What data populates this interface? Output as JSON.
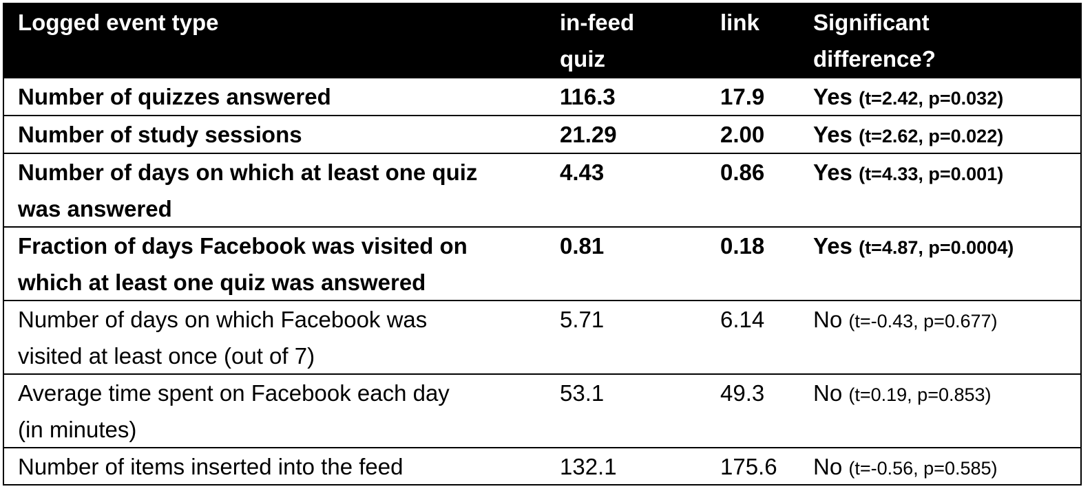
{
  "header": {
    "col1": "Logged event type",
    "col2_line1": "in-feed",
    "col2_line2": "quiz",
    "col3": "link",
    "col4_line1": "Significant",
    "col4_line2": "difference?"
  },
  "rows": [
    {
      "label_lines": [
        "Number of quizzes answered"
      ],
      "in_feed": "116.3",
      "link": "17.9",
      "sig": "Yes",
      "stat": "(t=2.42, p=0.032)",
      "bold": true
    },
    {
      "label_lines": [
        "Number of study sessions"
      ],
      "in_feed": "21.29",
      "link": "2.00",
      "sig": "Yes",
      "stat": "(t=2.62, p=0.022)",
      "bold": true
    },
    {
      "label_lines": [
        "Number of days on which at least one quiz",
        "was answered"
      ],
      "in_feed": "4.43",
      "link": "0.86",
      "sig": "Yes",
      "stat": "(t=4.33, p=0.001)",
      "bold": true
    },
    {
      "label_lines": [
        "Fraction of days Facebook was visited on",
        "which at least one quiz was answered"
      ],
      "in_feed": "0.81",
      "link": "0.18",
      "sig": "Yes",
      "stat": "(t=4.87, p=0.0004)",
      "bold": true
    },
    {
      "label_lines": [
        "Number of days on which Facebook was",
        "visited at least once (out of 7)"
      ],
      "in_feed": "5.71",
      "link": "6.14",
      "sig": "No",
      "stat": "(t=-0.43, p=0.677)",
      "bold": false
    },
    {
      "label_lines": [
        "Average time spent on Facebook each day",
        "(in minutes)"
      ],
      "in_feed": "53.1",
      "link": "49.3",
      "sig": "No",
      "stat": "(t=0.19, p=0.853)",
      "bold": false
    },
    {
      "label_lines": [
        "Number of items inserted into the feed"
      ],
      "in_feed": "132.1",
      "link": "175.6",
      "sig": "No",
      "stat": "(t=-0.56, p=0.585)",
      "bold": false
    }
  ]
}
